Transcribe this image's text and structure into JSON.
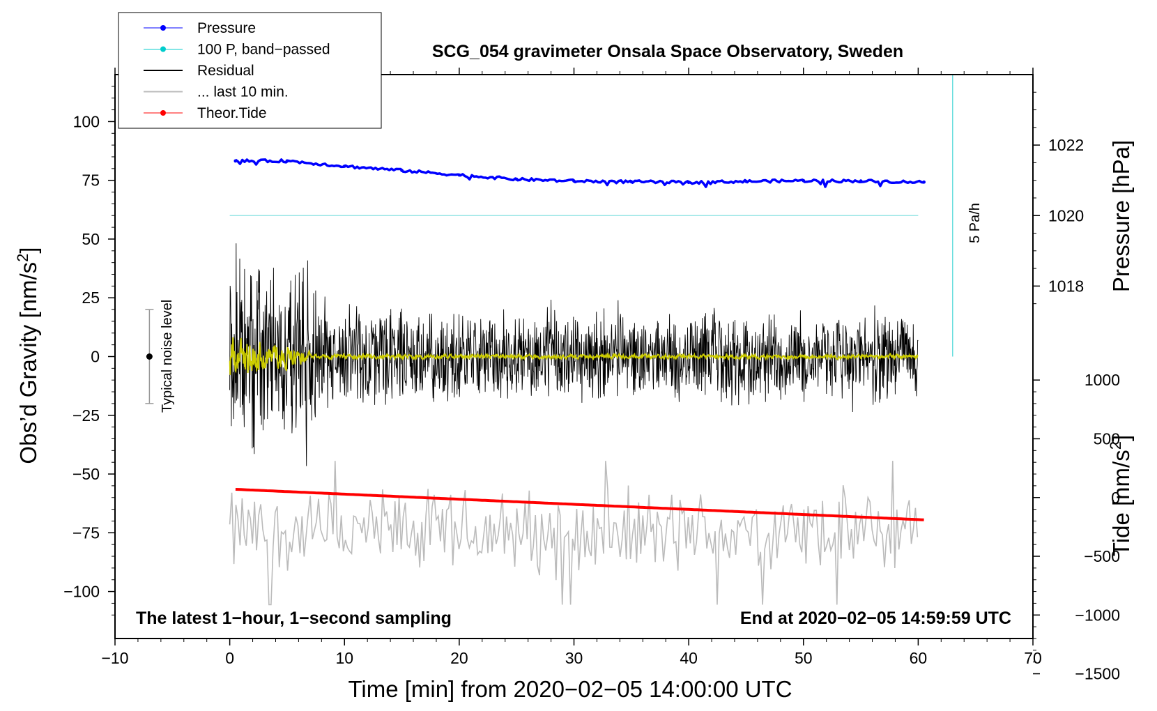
{
  "chart_data": {
    "type": "line",
    "title": "SCG_054 gravimeter Onsala Space Observatory, Sweden",
    "xlabel": "Time [min] from 2020−02−05 14:00:00 UTC",
    "ylabel_left_prefix": "Obs’d Gravity [nm/s",
    "ylabel_left_sup": "2",
    "ylabel_left_suffix": "]",
    "ylabel_right_pressure": "Pressure [hPa]",
    "ylabel_right_tide_prefix": "Tide [nm/s",
    "ylabel_right_tide_sup": "2",
    "ylabel_right_tide_suffix": "]",
    "xlim": [
      -10,
      70
    ],
    "ylim_gravity": [
      -120,
      120
    ],
    "pressure_scale": {
      "ref_value": 1020,
      "ref_gravity": 60,
      "gravity_per_hPa": 15
    },
    "tide_scale": {
      "ref_value": 0,
      "ref_gravity": -60,
      "gravity_per_unit": 0.05
    },
    "x_ticks": [
      {
        "v": -10,
        "label": "−10"
      },
      {
        "v": 0,
        "label": "0"
      },
      {
        "v": 10,
        "label": "10"
      },
      {
        "v": 20,
        "label": "20"
      },
      {
        "v": 30,
        "label": "30"
      },
      {
        "v": 40,
        "label": "40"
      },
      {
        "v": 50,
        "label": "50"
      },
      {
        "v": 60,
        "label": "60"
      },
      {
        "v": 70,
        "label": "70"
      }
    ],
    "y_ticks_gravity": [
      {
        "v": 100,
        "label": "100"
      },
      {
        "v": 75,
        "label": "75"
      },
      {
        "v": 50,
        "label": "50"
      },
      {
        "v": 25,
        "label": "25"
      },
      {
        "v": 0,
        "label": "0"
      },
      {
        "v": -25,
        "label": "−25"
      },
      {
        "v": -50,
        "label": "−50"
      },
      {
        "v": -75,
        "label": "−75"
      },
      {
        "v": -100,
        "label": "−100"
      }
    ],
    "y_ticks_pressure": [
      {
        "v": 1022,
        "label": "1022"
      },
      {
        "v": 1020,
        "label": "1020"
      },
      {
        "v": 1018,
        "label": "1018"
      }
    ],
    "y_ticks_tide": [
      {
        "v": 1000,
        "label": "1000"
      },
      {
        "v": 500,
        "label": "500"
      },
      {
        "v": 0,
        "label": "0"
      },
      {
        "v": -500,
        "label": "−500"
      },
      {
        "v": -1000,
        "label": "−1000"
      },
      {
        "v": -1500,
        "label": "−1500"
      }
    ],
    "series": [
      {
        "name": "Pressure",
        "color": "#0000ff",
        "unit": "hPa",
        "x": [
          0.5,
          5,
          10,
          15,
          20,
          25,
          30,
          35,
          40,
          45,
          50,
          55,
          60.5
        ],
        "values": [
          1021.55,
          1021.55,
          1021.4,
          1021.28,
          1021.15,
          1021.03,
          1020.98,
          1020.96,
          1020.94,
          1020.97,
          1020.99,
          1020.98,
          1020.95
        ]
      },
      {
        "name": "100 P, band−passed",
        "color": "#00cccc",
        "unit": "nm/s2",
        "x": [
          0,
          60
        ],
        "values": [
          60,
          60
        ]
      },
      {
        "name": "Residual",
        "color": "#000000",
        "unit": "nm/s2",
        "x_range": [
          0,
          60
        ],
        "envelope": [
          {
            "x": 0,
            "amp": 55
          },
          {
            "x": 5,
            "amp": 40
          },
          {
            "x": 6.5,
            "amp": 55
          },
          {
            "x": 8,
            "amp": 25
          },
          {
            "x": 20,
            "amp": 22
          },
          {
            "x": 40,
            "amp": 22
          },
          {
            "x": 60,
            "amp": 22
          }
        ]
      },
      {
        "name": "... last 10 min.",
        "color": "#bbbbbb",
        "unit": "nm/s2",
        "x_range": [
          0,
          60
        ],
        "center": -75,
        "amp": 17
      },
      {
        "name": "Theor.Tide",
        "color": "#ff0000",
        "unit": "nm/s2",
        "x": [
          0.5,
          60.5
        ],
        "values": [
          70,
          -190
        ]
      }
    ],
    "smoothed_color": "#cccc00",
    "pressure_rate_line": {
      "x": 63,
      "from_gravity": 120,
      "to_gravity": 0,
      "color": "#66dddd"
    },
    "noise_level": {
      "x": -7,
      "value": 0,
      "plus_minus": 20
    },
    "annotations": {
      "noise_label": "Typical noise level",
      "rate_label": "5 Pa/h",
      "bottom_left": "The latest 1−hour, 1−second sampling",
      "bottom_right": "End at 2020−02−05 14:59:59 UTC"
    },
    "legend": [
      {
        "label": "Pressure",
        "color": "#0000ff",
        "marker": "dot"
      },
      {
        "label": "100 P, band−passed",
        "color": "#00cccc",
        "marker": "dot"
      },
      {
        "label": "Residual",
        "color": "#000000",
        "marker": "none"
      },
      {
        "label": "... last 10 min.",
        "color": "#bbbbbb",
        "marker": "none"
      },
      {
        "label": "Theor.Tide",
        "color": "#ff0000",
        "marker": "dot"
      }
    ],
    "legend_position": "top-left"
  }
}
